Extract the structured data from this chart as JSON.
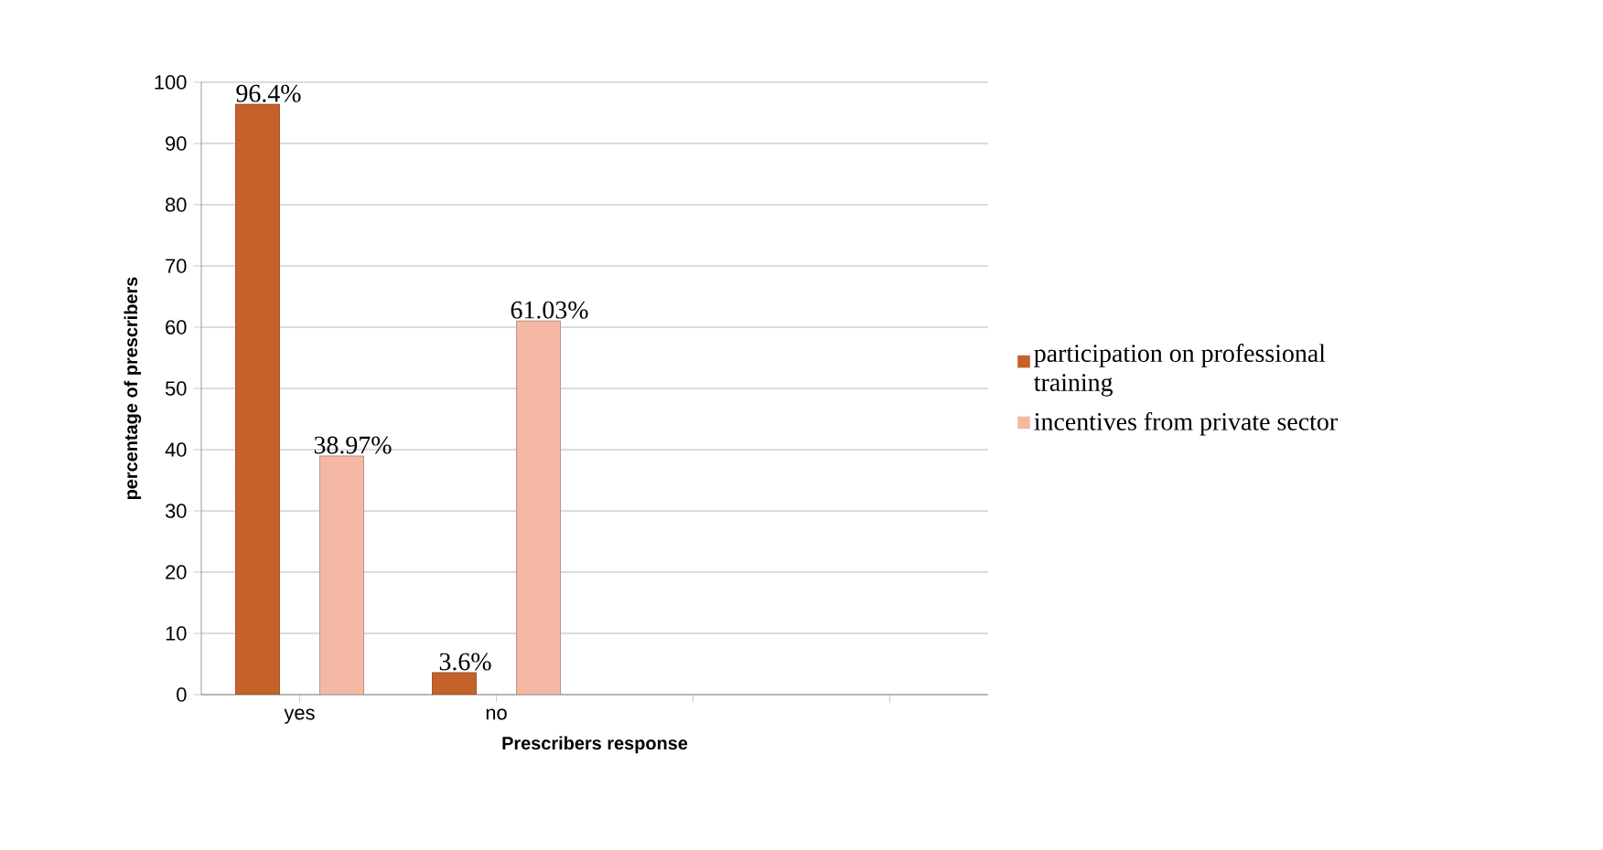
{
  "chart_data": {
    "type": "bar",
    "xlabel": "Prescribers response",
    "ylabel": "percentage of prescribers",
    "categories": [
      "yes",
      "no",
      null,
      null
    ],
    "series": [
      {
        "name": "participation on professional training",
        "color": "#c5612a",
        "values": [
          96.4,
          3.6,
          null,
          null
        ],
        "value_labels": [
          "96.4%",
          "3.6%",
          null,
          null
        ]
      },
      {
        "name": "incentives from private sector",
        "color": "#f4b8a4",
        "values": [
          38.97,
          61.03,
          null,
          null
        ],
        "value_labels": [
          "38.97%",
          "61.03%",
          null,
          null
        ]
      }
    ],
    "ylim": [
      0,
      100
    ],
    "yticks": [
      0,
      10,
      20,
      30,
      40,
      50,
      60,
      70,
      80,
      90,
      100
    ],
    "grid": "y",
    "legend": "right"
  }
}
